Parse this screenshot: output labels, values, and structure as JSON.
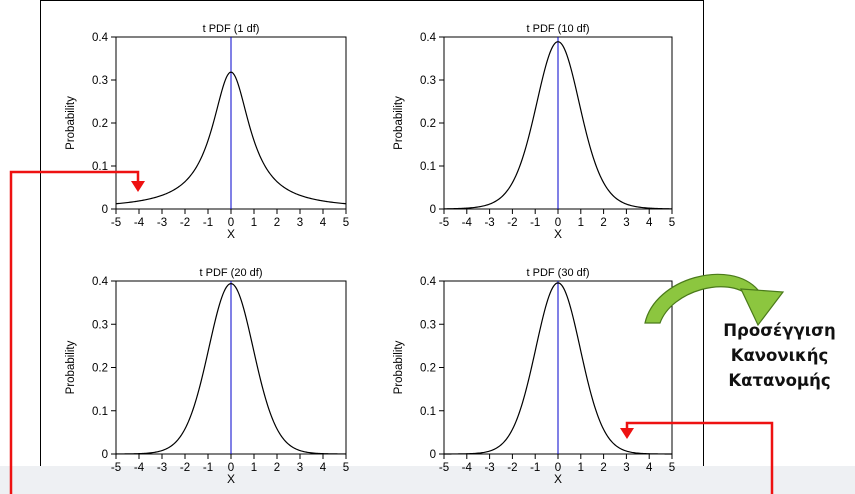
{
  "chart_data": [
    {
      "type": "line",
      "title": "t PDF (1 df)",
      "df": 1,
      "xlabel": "X",
      "ylabel": "Probability",
      "xlim": [
        -5,
        5
      ],
      "ylim": [
        0,
        0.4
      ],
      "xticks": [
        "-5",
        "-4",
        "-3",
        "-2",
        "-1",
        "0",
        "1",
        "2",
        "3",
        "4",
        "5"
      ],
      "yticks": [
        "0",
        "0.1",
        "0.2",
        "0.3",
        "0.4"
      ],
      "grid": false,
      "series": [
        {
          "color": "#000000",
          "x": [
            -5,
            -4,
            -3,
            -2,
            -1,
            0,
            1,
            2,
            3,
            4,
            5
          ],
          "values": [
            0.012,
            0.019,
            0.032,
            0.064,
            0.159,
            0.318,
            0.159,
            0.064,
            0.032,
            0.019,
            0.012
          ]
        }
      ],
      "reference_line": {
        "x": 0,
        "color": "#0000cc"
      }
    },
    {
      "type": "line",
      "title": "t PDF (10 df)",
      "df": 10,
      "xlabel": "X",
      "ylabel": "Probability",
      "xlim": [
        -5,
        5
      ],
      "ylim": [
        0,
        0.4
      ],
      "xticks": [
        "-5",
        "-4",
        "-3",
        "-2",
        "-1",
        "0",
        "1",
        "2",
        "3",
        "4",
        "5"
      ],
      "yticks": [
        "0",
        "0.1",
        "0.2",
        "0.3",
        "0.4"
      ],
      "grid": false,
      "series": [
        {
          "color": "#000000",
          "x": [
            -5,
            -4,
            -3,
            -2,
            -1,
            0,
            1,
            2,
            3,
            4,
            5
          ],
          "values": [
            0.0004,
            0.002,
            0.011,
            0.061,
            0.23,
            0.389,
            0.23,
            0.061,
            0.011,
            0.002,
            0.0004
          ]
        }
      ],
      "reference_line": {
        "x": 0,
        "color": "#0000cc"
      }
    },
    {
      "type": "line",
      "title": "t PDF (20 df)",
      "df": 20,
      "xlabel": "X",
      "ylabel": "Probability",
      "xlim": [
        -5,
        5
      ],
      "ylim": [
        0,
        0.4
      ],
      "xticks": [
        "-5",
        "-4",
        "-3",
        "-2",
        "-1",
        "0",
        "1",
        "2",
        "3",
        "4",
        "5"
      ],
      "yticks": [
        "0",
        "0.1",
        "0.2",
        "0.3",
        "0.4"
      ],
      "grid": false,
      "series": [
        {
          "color": "#000000",
          "x": [
            -5,
            -4,
            -3,
            -2,
            -1,
            0,
            1,
            2,
            3,
            4,
            5
          ],
          "values": [
            0.0,
            0.001,
            0.008,
            0.058,
            0.236,
            0.394,
            0.236,
            0.058,
            0.008,
            0.001,
            0.0
          ]
        }
      ],
      "reference_line": {
        "x": 0,
        "color": "#0000cc"
      }
    },
    {
      "type": "line",
      "title": "t PDF (30 df)",
      "df": 30,
      "xlabel": "X",
      "ylabel": "Probability",
      "xlim": [
        -5,
        5
      ],
      "ylim": [
        0,
        0.4
      ],
      "xticks": [
        "-5",
        "-4",
        "-3",
        "-2",
        "-1",
        "0",
        "1",
        "2",
        "3",
        "4",
        "5"
      ],
      "yticks": [
        "0",
        "0.1",
        "0.2",
        "0.3",
        "0.4"
      ],
      "grid": false,
      "series": [
        {
          "color": "#000000",
          "x": [
            -5,
            -4,
            -3,
            -2,
            -1,
            0,
            1,
            2,
            3,
            4,
            5
          ],
          "values": [
            0.0,
            0.001,
            0.007,
            0.057,
            0.238,
            0.396,
            0.238,
            0.057,
            0.007,
            0.001,
            0.0
          ]
        }
      ],
      "reference_line": {
        "x": 0,
        "color": "#0000cc"
      }
    }
  ],
  "annotation": {
    "caption_lines": [
      "Προσέγγιση",
      "Κανονικής",
      "Κατανομής"
    ],
    "arrow_colors": {
      "red": "#ee1111",
      "green_fill": "#8cc63f",
      "green_dark": "#4a7a1a"
    }
  },
  "colors": {
    "curve": "#000000",
    "center_line": "#0000cc",
    "background": "#ffffff"
  }
}
